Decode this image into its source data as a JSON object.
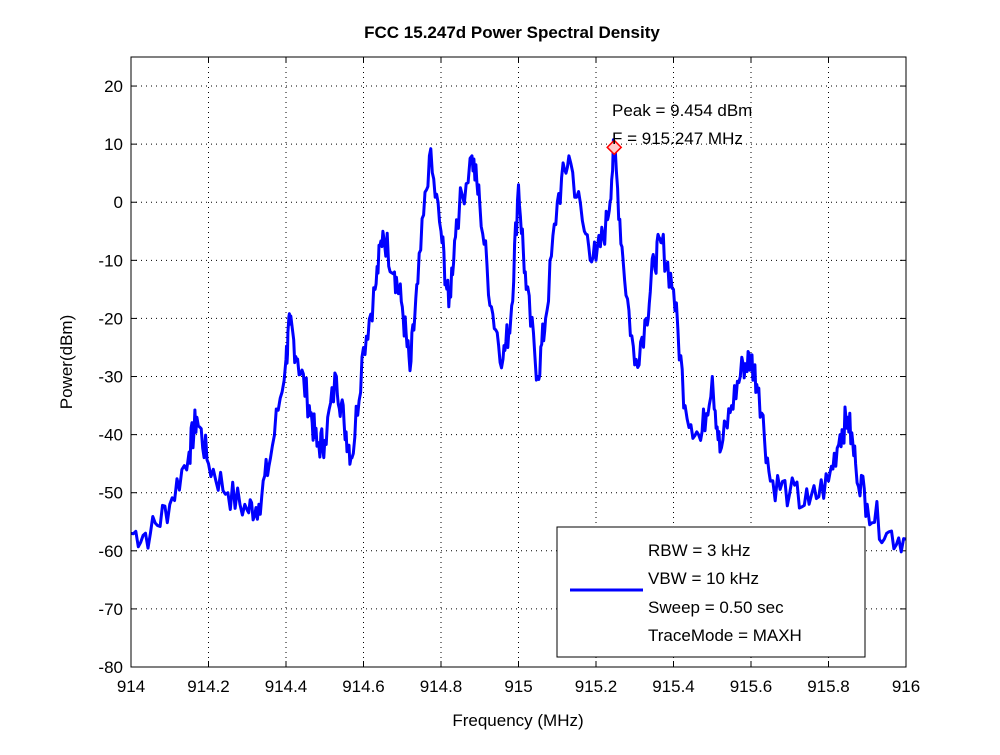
{
  "chart_data": {
    "type": "line",
    "title": "FCC 15.247d Power Spectral Density",
    "xlabel": "Frequency (MHz)",
    "ylabel": "Power(dBm)",
    "xlim": [
      914,
      916
    ],
    "ylim": [
      -80,
      25
    ],
    "xticks": [
      914,
      914.2,
      914.4,
      914.6,
      914.8,
      915,
      915.2,
      915.4,
      915.6,
      915.8,
      916
    ],
    "xtick_labels": [
      "914",
      "914.2",
      "914.4",
      "914.6",
      "914.8",
      "915",
      "915.2",
      "915.4",
      "915.6",
      "915.8",
      "916"
    ],
    "yticks": [
      -80,
      -70,
      -60,
      -50,
      -40,
      -30,
      -20,
      -10,
      0,
      10,
      20
    ],
    "ytick_labels": [
      "-80",
      "-70",
      "-60",
      "-50",
      "-40",
      "-30",
      "-20",
      "-10",
      "0",
      "10",
      "20"
    ],
    "grid": true,
    "series_color": "#0000ff",
    "series": [
      {
        "x": [
          914.0,
          914.05,
          914.1,
          914.15,
          914.17,
          914.2,
          914.25,
          914.3,
          914.33,
          914.36,
          914.4,
          914.41,
          914.43,
          914.46,
          914.48,
          914.5,
          914.53,
          914.55,
          914.57,
          914.6,
          914.63,
          914.65,
          914.68,
          914.7,
          914.72,
          914.74,
          914.77,
          914.8,
          914.82,
          914.84,
          914.88,
          914.9,
          914.93,
          914.96,
          914.98,
          915.0,
          915.02,
          915.05,
          915.07,
          915.1,
          915.13,
          915.17,
          915.2,
          915.23,
          915.247,
          915.27,
          915.3,
          915.33,
          915.35,
          915.37,
          915.4,
          915.43,
          915.47,
          915.5,
          915.52,
          915.55,
          915.58,
          915.6,
          915.62,
          915.65,
          915.7,
          915.75,
          915.8,
          915.83,
          915.85,
          915.87,
          915.9,
          915.95,
          916.0
        ],
        "y": [
          -57,
          -57,
          -52,
          -43,
          -37,
          -45,
          -50,
          -53,
          -52,
          -44,
          -27,
          -21,
          -27,
          -35,
          -42,
          -41,
          -30,
          -38,
          -44,
          -25,
          -15,
          -5,
          -12,
          -18,
          -29,
          -14,
          8,
          -5,
          -18,
          -3,
          8,
          0,
          -18,
          -27,
          -20,
          3,
          -15,
          -30,
          -20,
          0,
          8,
          -5,
          -10,
          -3,
          9.454,
          -10,
          -28,
          -20,
          -10,
          -7,
          -15,
          -35,
          -41,
          -30,
          -43,
          -35,
          -28,
          -27,
          -32,
          -48,
          -50,
          -52,
          -48,
          -40,
          -37,
          -45,
          -52,
          -57,
          -58
        ]
      }
    ],
    "peak": {
      "x": 915.247,
      "y": 9.454,
      "marker_color": "#ff0000",
      "line1": "Peak =  9.454 dBm",
      "line2": "F = 915.247 MHz"
    },
    "legend": {
      "placement": "bottom-right",
      "entries": [
        "RBW = 3 kHz",
        "VBW = 10 kHz",
        "Sweep = 0.50 sec",
        "TraceMode = MAXH"
      ]
    }
  }
}
